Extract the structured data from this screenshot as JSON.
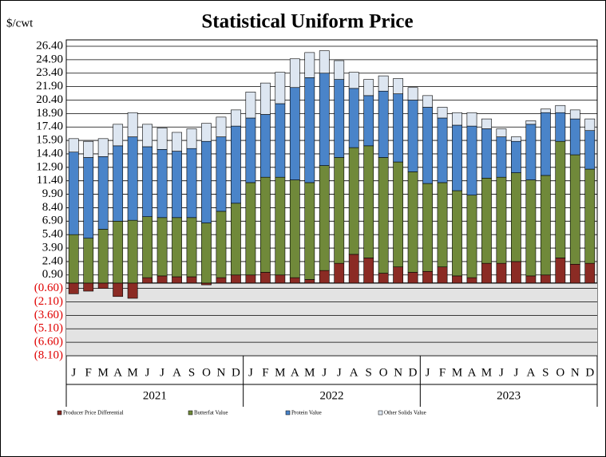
{
  "chart_data": {
    "type": "stacked_bar",
    "title": "Statistical Uniform Price",
    "y_label": "$/cwt",
    "categories": [
      "J",
      "F",
      "M",
      "A",
      "M",
      "J",
      "J",
      "A",
      "S",
      "O",
      "N",
      "D",
      "J",
      "F",
      "M",
      "A",
      "M",
      "J",
      "J",
      "A",
      "S",
      "O",
      "N",
      "D",
      "J",
      "F",
      "M",
      "A",
      "M",
      "J",
      "J",
      "A",
      "S",
      "O",
      "N",
      "D"
    ],
    "groups": [
      "2021",
      "2022",
      "2023"
    ],
    "series": [
      {
        "name": "Producer Price Differential",
        "color": "#8b2b24",
        "values": [
          -1.2,
          -0.9,
          -0.6,
          -1.5,
          -1.7,
          0.6,
          0.8,
          0.7,
          0.7,
          -0.2,
          0.6,
          0.9,
          0.9,
          1.2,
          0.9,
          0.6,
          0.4,
          1.4,
          2.2,
          3.2,
          2.8,
          1.1,
          1.8,
          1.2,
          1.3,
          1.8,
          0.8,
          0.6,
          2.2,
          2.2,
          2.4,
          0.8,
          0.9,
          2.8,
          2.1,
          2.2
        ]
      },
      {
        "name": "Butterfat Value",
        "color": "#70893a",
        "values": [
          5.4,
          5.0,
          6.0,
          6.9,
          7.0,
          6.8,
          6.5,
          6.6,
          6.6,
          6.7,
          7.4,
          8.0,
          10.3,
          10.6,
          10.9,
          10.9,
          10.8,
          11.7,
          11.8,
          11.9,
          12.5,
          12.9,
          11.7,
          11.2,
          9.8,
          9.4,
          9.5,
          9.2,
          9.5,
          9.6,
          9.9,
          10.7,
          11.1,
          13.0,
          12.2,
          10.5
        ]
      },
      {
        "name": "Protein Value",
        "color": "#4a84c9",
        "values": [
          9.2,
          9.0,
          8.1,
          8.4,
          9.3,
          7.8,
          7.6,
          7.4,
          7.7,
          9.1,
          8.3,
          8.6,
          7.2,
          7.0,
          8.2,
          10.3,
          11.7,
          10.3,
          8.7,
          6.6,
          5.6,
          7.4,
          7.6,
          8.0,
          8.5,
          7.2,
          7.3,
          7.7,
          5.5,
          4.5,
          3.5,
          6.2,
          7.0,
          3.2,
          4.0,
          4.3
        ]
      },
      {
        "name": "Other Solids Value",
        "color": "#dde6f1",
        "values": [
          1.5,
          1.8,
          2.0,
          2.4,
          2.7,
          2.5,
          2.4,
          2.1,
          2.2,
          2.0,
          2.2,
          1.8,
          2.9,
          3.5,
          3.5,
          3.2,
          2.8,
          2.5,
          2.1,
          1.8,
          1.8,
          1.7,
          1.7,
          1.4,
          1.3,
          1.2,
          1.4,
          1.5,
          1.1,
          0.9,
          0.5,
          0.4,
          0.4,
          0.8,
          1.0,
          1.3
        ]
      }
    ],
    "ylim": [
      -8.1,
      26.4
    ],
    "yticks": [
      {
        "value": 26.4,
        "label": "26.40"
      },
      {
        "value": 24.9,
        "label": "24.90"
      },
      {
        "value": 23.4,
        "label": "23.40"
      },
      {
        "value": 21.9,
        "label": "21.90"
      },
      {
        "value": 20.4,
        "label": "20.40"
      },
      {
        "value": 18.9,
        "label": "18.90"
      },
      {
        "value": 17.4,
        "label": "17.40"
      },
      {
        "value": 15.9,
        "label": "15.90"
      },
      {
        "value": 14.4,
        "label": "14.40"
      },
      {
        "value": 12.9,
        "label": "12.90"
      },
      {
        "value": 11.4,
        "label": "11.40"
      },
      {
        "value": 9.9,
        "label": "9.90"
      },
      {
        "value": 8.4,
        "label": "8.40"
      },
      {
        "value": 6.9,
        "label": "6.90"
      },
      {
        "value": 5.4,
        "label": "5.40"
      },
      {
        "value": 3.9,
        "label": "3.90"
      },
      {
        "value": 2.4,
        "label": "2.40"
      },
      {
        "value": 0.9,
        "label": "0.90"
      },
      {
        "value": -0.6,
        "label": "(0.60)"
      },
      {
        "value": -2.1,
        "label": "(2.10)"
      },
      {
        "value": -3.6,
        "label": "(3.60)"
      },
      {
        "value": -5.1,
        "label": "(5.10)"
      },
      {
        "value": -6.6,
        "label": "(6.60)"
      },
      {
        "value": -8.1,
        "label": "(8.10)"
      }
    ],
    "grid": true
  }
}
